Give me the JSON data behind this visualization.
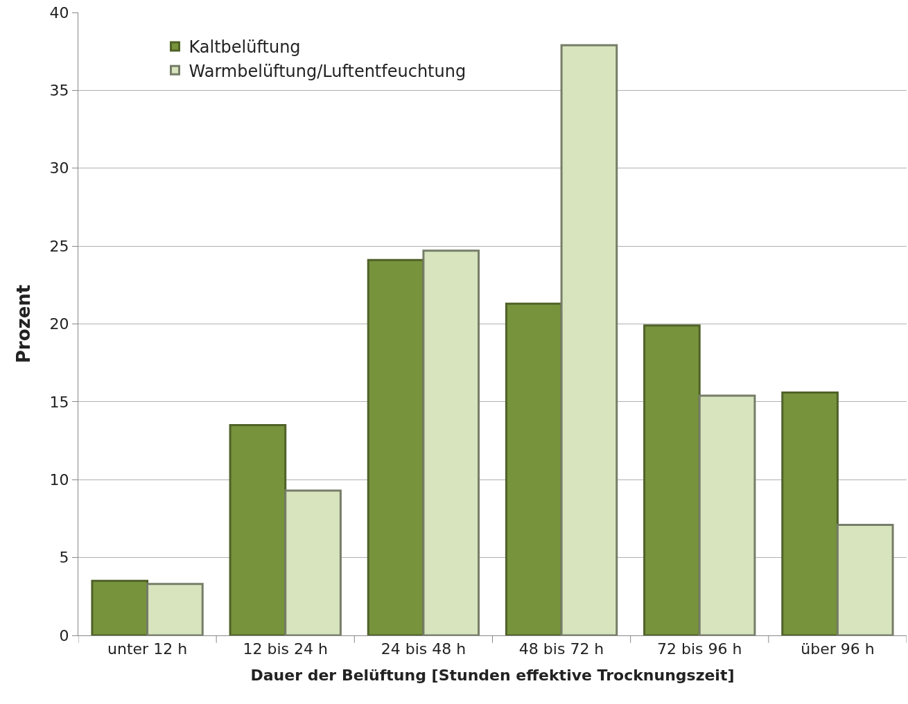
{
  "chart_data": {
    "type": "bar",
    "xlabel": "Dauer der Belüftung [Stunden effektive Trocknungszeit]",
    "ylabel": "Prozent",
    "categories": [
      "unter 12 h",
      "12 bis 24 h",
      "24 bis 48 h",
      "48 bis 72 h",
      "72 bis 96 h",
      "über 96 h"
    ],
    "series": [
      {
        "name": "Kaltbelüftung",
        "color": "#77933c",
        "values": [
          3.5,
          13.5,
          24.1,
          21.3,
          19.9,
          15.6
        ]
      },
      {
        "name": "Warmbelüftung/Luftentfeuchtung",
        "color": "#d7e4bd",
        "values": [
          3.3,
          9.3,
          24.7,
          37.9,
          15.4,
          7.1
        ]
      }
    ],
    "ylim": [
      0,
      40
    ],
    "yticks": [
      0,
      5,
      10,
      15,
      20,
      25,
      30,
      35,
      40
    ],
    "grid": "y",
    "legend": "top left"
  }
}
